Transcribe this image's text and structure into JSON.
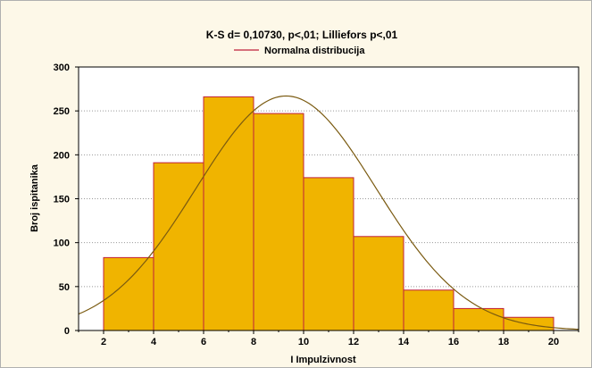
{
  "chart_data": {
    "type": "bar",
    "title": "K-S d= 0,10730, p<,01; Lilliefors p<,01",
    "xlabel": "I Impulzivnost",
    "ylabel": "Broj ispitanika",
    "xlim": [
      1,
      21
    ],
    "ylim": [
      0,
      300
    ],
    "x_ticks": [
      2,
      4,
      6,
      8,
      10,
      12,
      14,
      16,
      18,
      20
    ],
    "y_ticks": [
      0,
      50,
      100,
      150,
      200,
      250,
      300
    ],
    "grid": "horizontal dotted",
    "legend_position": "top-center",
    "bins": [
      {
        "x0": 2,
        "x1": 4,
        "value": 83
      },
      {
        "x0": 4,
        "x1": 6,
        "value": 191
      },
      {
        "x0": 6,
        "x1": 8,
        "value": 266
      },
      {
        "x0": 8,
        "x1": 10,
        "value": 247
      },
      {
        "x0": 10,
        "x1": 12,
        "value": 174
      },
      {
        "x0": 12,
        "x1": 14,
        "value": 107
      },
      {
        "x0": 14,
        "x1": 16,
        "value": 46
      },
      {
        "x0": 16,
        "x1": 18,
        "value": 25
      },
      {
        "x0": 18,
        "x1": 20,
        "value": 15
      }
    ],
    "fit_curve": {
      "name": "Normalna distribucija",
      "mean": 9.3,
      "sd": 3.6,
      "peak": 267
    },
    "colors": {
      "bar_fill": "#f0b400",
      "bar_stroke": "#c0203a",
      "curve": "#7a5a10",
      "legend_line": "#c0203a",
      "background": "#fdf8e8",
      "plot_background": "#ffffff"
    }
  }
}
